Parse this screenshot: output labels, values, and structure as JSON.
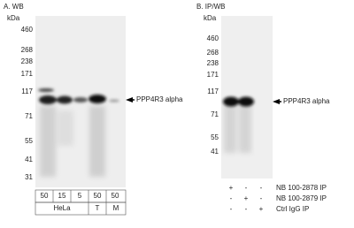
{
  "panel_a": {
    "title": "A. WB",
    "unit": "kDa",
    "markers": [
      "460",
      "268",
      "238",
      "171",
      "117",
      "71",
      "55",
      "41",
      "31"
    ],
    "band_label": "PPP4R3 alpha",
    "loads": [
      "50",
      "15",
      "5",
      "50",
      "50"
    ],
    "samples": [
      "HeLa",
      "T",
      "M"
    ]
  },
  "panel_b": {
    "title": "B. IP/WB",
    "unit": "kDa",
    "markers": [
      "460",
      "268",
      "238",
      "171",
      "117",
      "71",
      "55",
      "41"
    ],
    "band_label": "PPP4R3 alpha",
    "ip_rows": [
      {
        "label": "NB 100-2878 IP",
        "signs": [
          "+",
          "-",
          "-"
        ]
      },
      {
        "label": "NB 100-2879 IP",
        "signs": [
          "-",
          "+",
          "-"
        ]
      },
      {
        "label": "Ctrl IgG IP",
        "signs": [
          "-",
          "-",
          "+"
        ]
      }
    ]
  }
}
